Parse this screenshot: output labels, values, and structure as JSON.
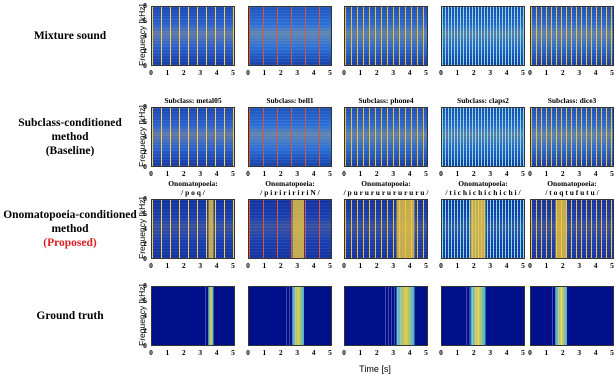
{
  "rows": [
    {
      "label": [
        "Mixture sound"
      ]
    },
    {
      "label": [
        "Subclass-conditioned",
        "method",
        "(Baseline)"
      ],
      "captions": [
        [
          "Subclass: metal05"
        ],
        [
          "Subclass: bell1"
        ],
        [
          "Subclass: phone4"
        ],
        [
          "Subclass: claps2"
        ],
        [
          "Subclass: dice3"
        ]
      ]
    },
    {
      "label": [
        "Onomatopoeia-conditioned",
        "method"
      ],
      "highlight": "(Proposed)",
      "captions": [
        [
          "Onomatopoeia:",
          "/ p o q /"
        ],
        [
          "Onomatopoeia:",
          "/ p i r i r i r i r i N /"
        ],
        [
          "Onomatopoeia:",
          "/ p u r u r u r u r u r u r u /"
        ],
        [
          "Onomatopoeia:",
          "/ t i c h i c h i c h i c h i /"
        ],
        [
          "Onomatopoeia:",
          "/ t o q t u f u t u /"
        ]
      ]
    },
    {
      "label": [
        "Ground truth"
      ]
    }
  ],
  "xticks": [
    "0",
    "1",
    "2",
    "3",
    "4",
    "5"
  ],
  "yticks": [
    "0",
    "2",
    "4",
    "6",
    "8"
  ],
  "ylabel": "Frequency [kHz]",
  "xlabel": "Time [s]"
}
